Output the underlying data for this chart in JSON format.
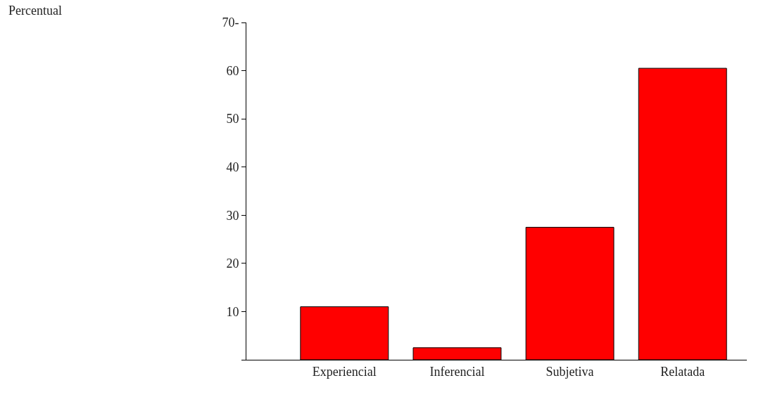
{
  "chart_data": {
    "type": "bar",
    "annotations": [
      "Percentual"
    ],
    "categories": [
      "Experiencial",
      "Inferencial",
      "Subjetiva",
      "Relatada"
    ],
    "values": [
      11,
      2.5,
      27.5,
      60.5
    ],
    "color": "#ff0000",
    "ylim": [
      0,
      70
    ],
    "yticks": [
      {
        "value": 0,
        "label": null
      },
      10,
      20,
      30,
      40,
      50,
      60,
      {
        "value": 70,
        "label": "70-"
      }
    ]
  }
}
